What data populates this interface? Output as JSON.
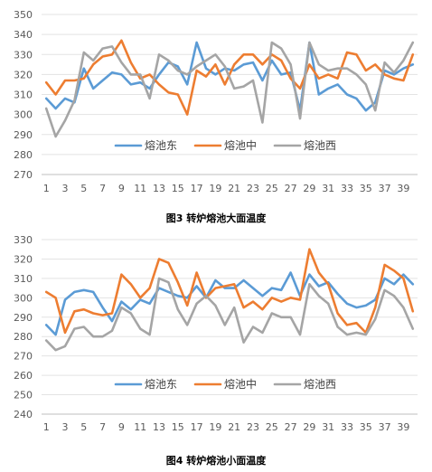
{
  "chart_data": [
    {
      "type": "line",
      "title": "图3 转炉熔池大面温度",
      "ylim": [
        270,
        350
      ],
      "yticks": [
        270,
        280,
        290,
        300,
        310,
        320,
        330,
        340,
        350
      ],
      "x": [
        1,
        2,
        3,
        4,
        5,
        6,
        7,
        8,
        9,
        10,
        11,
        12,
        13,
        14,
        15,
        16,
        17,
        18,
        19,
        20,
        21,
        22,
        23,
        24,
        25,
        26,
        27,
        28,
        29,
        30,
        31,
        32,
        33,
        34,
        35,
        36,
        37,
        38,
        39,
        40
      ],
      "xticks": [
        1,
        3,
        5,
        7,
        9,
        11,
        13,
        15,
        17,
        19,
        21,
        23,
        25,
        27,
        29,
        31,
        33,
        35,
        37,
        39
      ],
      "grid": true,
      "legend": "inside-center",
      "series": [
        {
          "name": "熔池东",
          "color": "#5b9bd5",
          "values": [
            308,
            303,
            308,
            306,
            323,
            313,
            317,
            321,
            320,
            315,
            316,
            313,
            320,
            326,
            324,
            315,
            336,
            323,
            320,
            323,
            322,
            325,
            326,
            317,
            327,
            320,
            321,
            302,
            336,
            310,
            313,
            315,
            310,
            308,
            302,
            306,
            322,
            320,
            323,
            325
          ]
        },
        {
          "name": "熔池中",
          "color": "#ed7d31",
          "values": [
            316,
            310,
            317,
            317,
            318,
            325,
            329,
            330,
            337,
            326,
            318,
            320,
            315,
            311,
            310,
            300,
            322,
            319,
            325,
            315,
            325,
            330,
            330,
            325,
            330,
            327,
            318,
            313,
            325,
            318,
            320,
            318,
            331,
            330,
            322,
            325,
            320,
            318,
            317,
            330
          ]
        },
        {
          "name": "熔池西",
          "color": "#a5a5a5",
          "values": [
            303,
            289,
            297,
            307,
            331,
            327,
            333,
            334,
            326,
            320,
            320,
            308,
            330,
            327,
            322,
            320,
            324,
            327,
            330,
            324,
            313,
            314,
            317,
            296,
            336,
            333,
            325,
            298,
            336,
            325,
            322,
            323,
            323,
            320,
            315,
            302,
            326,
            321,
            327,
            336
          ]
        }
      ]
    },
    {
      "type": "line",
      "title": "图4 转炉熔池小面温度",
      "ylim": [
        240,
        330
      ],
      "yticks": [
        240,
        250,
        260,
        270,
        280,
        290,
        300,
        310,
        320,
        330
      ],
      "x": [
        1,
        2,
        3,
        4,
        5,
        6,
        7,
        8,
        9,
        10,
        11,
        12,
        13,
        14,
        15,
        16,
        17,
        18,
        19,
        20,
        21,
        22,
        23,
        24,
        25,
        26,
        27,
        28,
        29,
        30,
        31,
        32,
        33,
        34,
        35,
        36,
        37,
        38,
        39,
        40
      ],
      "xticks": [
        1,
        3,
        5,
        7,
        9,
        11,
        13,
        15,
        17,
        19,
        21,
        23,
        25,
        27,
        29,
        31,
        33,
        35,
        37,
        39
      ],
      "grid": true,
      "legend": "bottom",
      "series": [
        {
          "name": "熔池东",
          "color": "#5b9bd5",
          "values": [
            286,
            281,
            299,
            303,
            304,
            303,
            295,
            288,
            298,
            294,
            299,
            297,
            305,
            303,
            301,
            300,
            306,
            300,
            309,
            305,
            305,
            309,
            305,
            301,
            305,
            304,
            313,
            301,
            312,
            306,
            308,
            302,
            297,
            295,
            296,
            299,
            310,
            307,
            312,
            307
          ]
        },
        {
          "name": "熔池中",
          "color": "#ed7d31",
          "values": [
            303,
            300,
            282,
            293,
            294,
            292,
            291,
            292,
            312,
            307,
            300,
            305,
            320,
            318,
            308,
            296,
            313,
            300,
            305,
            306,
            307,
            295,
            298,
            294,
            300,
            298,
            300,
            299,
            325,
            313,
            307,
            292,
            286,
            287,
            282,
            295,
            317,
            314,
            310,
            293
          ]
        },
        {
          "name": "熔池西",
          "color": "#a5a5a5",
          "values": [
            278,
            273,
            275,
            284,
            285,
            280,
            280,
            283,
            295,
            292,
            284,
            281,
            310,
            308,
            294,
            286,
            297,
            301,
            296,
            286,
            295,
            277,
            285,
            282,
            292,
            290,
            290,
            281,
            307,
            301,
            297,
            285,
            281,
            282,
            281,
            289,
            304,
            301,
            295,
            284
          ]
        }
      ]
    }
  ]
}
